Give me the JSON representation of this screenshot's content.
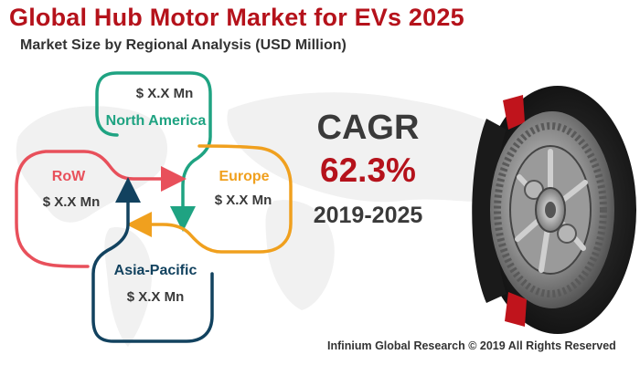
{
  "header": {
    "title": "Global Hub Motor Market for EVs 2025",
    "subtitle": "Market Size by Regional Analysis (USD Million)"
  },
  "regions": [
    {
      "name": "North America",
      "value": "$ X.X Mn",
      "color": "#1fa382"
    },
    {
      "name": "Europe",
      "value": "$ X.X Mn",
      "color": "#f0a01e"
    },
    {
      "name": "RoW",
      "value": "$ X.X Mn",
      "color": "#e8505b"
    },
    {
      "name": "Asia-Pacific",
      "value": "$ X.X Mn",
      "color": "#12425f"
    }
  ],
  "cagr": {
    "label": "CAGR",
    "value": "62.3%",
    "period": "2019-2025"
  },
  "footer": {
    "copyright": "Infinium Global Research © 2019 All Rights Reserved"
  },
  "colors": {
    "brand_red": "#b5121b",
    "text_dark": "#3a3a3a",
    "map_gray": "#f0f0f0"
  },
  "image": {
    "subject": "hub-motor-cutaway"
  }
}
